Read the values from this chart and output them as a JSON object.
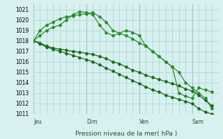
{
  "background_color": "#d8f0f0",
  "grid_color": "#b0d8d8",
  "line_color_dark": "#1a6b1a",
  "line_color_light": "#2d8b2d",
  "xlabel": "Pression niveau de la mer( hPa )",
  "ylim": [
    1011,
    1021.5
  ],
  "yticks": [
    1011,
    1012,
    1013,
    1014,
    1015,
    1016,
    1017,
    1018,
    1019,
    1020,
    1021
  ],
  "day_labels": [
    "Jeu",
    "Dim",
    "Ven",
    "Sam"
  ],
  "day_positions": [
    0,
    48,
    96,
    144
  ],
  "series1_x": [
    0,
    6,
    12,
    18,
    24,
    30,
    36,
    42,
    48,
    54,
    60,
    66,
    72,
    78,
    84,
    90,
    96,
    102,
    108,
    114,
    120,
    126,
    132,
    138,
    144,
    150,
    156,
    162
  ],
  "series1_y": [
    1018.0,
    1018.5,
    1019.0,
    1019.3,
    1019.5,
    1020.0,
    1020.5,
    1020.8,
    1020.7,
    1020.5,
    1019.5,
    1018.8,
    1018.5,
    1018.7,
    1019.0,
    1018.8,
    1018.5,
    1017.5,
    1017.0,
    1016.5,
    1016.0,
    1015.5,
    1015.0,
    1014.0,
    1013.5,
    1013.0,
    1012.5,
    1011.5
  ],
  "series2_x": [
    0,
    6,
    12,
    18,
    24,
    30,
    36,
    42,
    48,
    54,
    60,
    66,
    72,
    78,
    84,
    90,
    96,
    102,
    108,
    114,
    120,
    126,
    132,
    138,
    144,
    150,
    156,
    162
  ],
  "series2_y": [
    1018.0,
    1017.8,
    1017.5,
    1017.3,
    1017.2,
    1017.1,
    1017.0,
    1016.9,
    1016.8,
    1016.7,
    1016.5,
    1016.3,
    1016.0,
    1015.8,
    1015.5,
    1015.2,
    1015.0,
    1014.7,
    1014.5,
    1014.3,
    1014.1,
    1013.9,
    1013.7,
    1013.4,
    1013.2,
    1012.8,
    1012.3,
    1011.8
  ],
  "series3_x": [
    0,
    6,
    12,
    18,
    24,
    30,
    36,
    42,
    48,
    54,
    60,
    66,
    72,
    78,
    84,
    90,
    96,
    102,
    108,
    114,
    120,
    126,
    132,
    138,
    144,
    150,
    156,
    162
  ],
  "series3_y": [
    1018.0,
    1017.7,
    1017.4,
    1017.2,
    1017.0,
    1016.8,
    1016.6,
    1016.4,
    1016.2,
    1016.0,
    1015.7,
    1015.4,
    1015.1,
    1014.8,
    1014.5,
    1014.2,
    1013.9,
    1013.6,
    1013.3,
    1013.1,
    1012.8,
    1012.6,
    1012.4,
    1012.2,
    1012.0,
    1011.5,
    1011.2,
    1011.0
  ],
  "series4_x": [
    0,
    6,
    12,
    18,
    24,
    30,
    36,
    42,
    48,
    54,
    60,
    66,
    72,
    78,
    84,
    90,
    96,
    102,
    108,
    114,
    120,
    126,
    132,
    138,
    144,
    150,
    156,
    162
  ],
  "series4_y": [
    1018.0,
    1019.0,
    1019.5,
    1019.8,
    1020.1,
    1020.3,
    1020.4,
    1020.5,
    1020.6,
    1020.7,
    1020.3,
    1019.8,
    1019.0,
    1018.7,
    1018.5,
    1018.2,
    1017.8,
    1017.5,
    1017.0,
    1016.5,
    1016.0,
    1015.5,
    1013.0,
    1012.7,
    1012.5,
    1013.5,
    1013.3,
    1013.1
  ]
}
